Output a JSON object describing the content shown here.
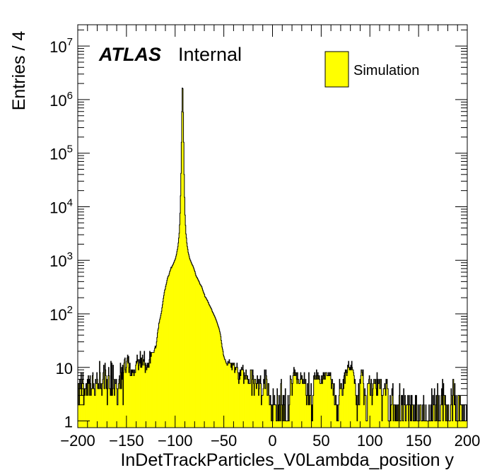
{
  "chart_data": {
    "type": "bar",
    "subtype": "histogram",
    "xlabel": "InDetTrackParticles_V0Lambda_position y",
    "ylabel": "Entries / 4",
    "xlim": [
      -200,
      200
    ],
    "ylim": [
      0.75,
      25000000
    ],
    "yscale": "log",
    "bin_width": 4,
    "x_ticks": [
      "−200",
      "−150",
      "−100",
      "−50",
      "0",
      "50",
      "100",
      "150",
      "200"
    ],
    "x_tick_values": [
      -200,
      -150,
      -100,
      -50,
      0,
      50,
      100,
      150,
      200
    ],
    "y_ticks": [
      {
        "base": "1",
        "exp": "",
        "value": 1
      },
      {
        "base": "10",
        "exp": "",
        "value": 10
      },
      {
        "base": "10",
        "exp": "2",
        "value": 100
      },
      {
        "base": "10",
        "exp": "3",
        "value": 1000
      },
      {
        "base": "10",
        "exp": "4",
        "value": 10000
      },
      {
        "base": "10",
        "exp": "5",
        "value": 100000
      },
      {
        "base": "10",
        "exp": "6",
        "value": 1000000
      },
      {
        "base": "10",
        "exp": "7",
        "value": 10000000
      }
    ],
    "label_atlas": "ATLAS",
    "label_internal": "Internal",
    "legend": {
      "position": "top-right",
      "entries": [
        "Simulation"
      ]
    },
    "fill_color": "#ffff00",
    "line_color": "#000000",
    "series": [
      {
        "name": "Simulation",
        "values": [
          2,
          5,
          5,
          2,
          6,
          4,
          4,
          8,
          3,
          5,
          6,
          8,
          5,
          2,
          4,
          3,
          4,
          4,
          5,
          3,
          5,
          6,
          3,
          7,
          5,
          6,
          3,
          7,
          5,
          3,
          4,
          4,
          7,
          8,
          4,
          5,
          4,
          3,
          3,
          6,
          5,
          5,
          8,
          6,
          4,
          5,
          4,
          4,
          13,
          8,
          4,
          5,
          4,
          3,
          5,
          6,
          8,
          11,
          4,
          4,
          12,
          9,
          7,
          4,
          6,
          2,
          4,
          7,
          10,
          7,
          4,
          4,
          3,
          13,
          3,
          12,
          3,
          4,
          11,
          6,
          4,
          3,
          6,
          5,
          5,
          6,
          4,
          2,
          2,
          4,
          5,
          6,
          7,
          4,
          12,
          8,
          4,
          10,
          6,
          11,
          2,
          8,
          12,
          14,
          15,
          9,
          8,
          10,
          13,
          15,
          17,
          12,
          16,
          8,
          10,
          12,
          7,
          7,
          9,
          7,
          9,
          8,
          9,
          8,
          7,
          9,
          8,
          8,
          11,
          13,
          12,
          17,
          13,
          14,
          9,
          11,
          14,
          12,
          20,
          10,
          15,
          10,
          15,
          17,
          11,
          14,
          13,
          20,
          11,
          8,
          12,
          11,
          9,
          10,
          12,
          10,
          12,
          10,
          14,
          20,
          12,
          19,
          16,
          19,
          19,
          19,
          19,
          19,
          19,
          21,
          23,
          25,
          23,
          25,
          30,
          36,
          44,
          50,
          54,
          66,
          70,
          78,
          84,
          92,
          101,
          112,
          130,
          148,
          170,
          195,
          220,
          250,
          278,
          290,
          322,
          350,
          380,
          420,
          460,
          490,
          510,
          520,
          560,
          610,
          640,
          680,
          740,
          720,
          760,
          800,
          820,
          860,
          900,
          940,
          990,
          1040,
          1100,
          1200,
          1300,
          1450,
          1600,
          1800,
          2100,
          2600,
          3200,
          4600,
          7600,
          16000,
          42000,
          160000,
          600000,
          1650000,
          1600000,
          580000,
          160000,
          40000,
          15000,
          7000,
          4500,
          3100,
          2600,
          2100,
          1800,
          1600,
          1400,
          1300,
          1200,
          1100,
          1040,
          990,
          940,
          900,
          860,
          820,
          800,
          760,
          720,
          680,
          640,
          610,
          560,
          520,
          500,
          480,
          470,
          450,
          430,
          415,
          400,
          380,
          360,
          350,
          340,
          330,
          320,
          300,
          280,
          265,
          250,
          240,
          230,
          210,
          205,
          200,
          195,
          185,
          180,
          175,
          165,
          160,
          150,
          145,
          140,
          135,
          130,
          125,
          120,
          112,
          108,
          104,
          100,
          95,
          92,
          88,
          84,
          80,
          76,
          72,
          68,
          64,
          60,
          57,
          54,
          50,
          46,
          42,
          38,
          32,
          28,
          24,
          22,
          20,
          17,
          16,
          15,
          14,
          14,
          13,
          12,
          12,
          11,
          11,
          13,
          12,
          12,
          14,
          12,
          12,
          12,
          10,
          12,
          9,
          12,
          12,
          11,
          12,
          12,
          8,
          10,
          9,
          10,
          10,
          12,
          10,
          8,
          6,
          5,
          8,
          6,
          9,
          7,
          9,
          10,
          9,
          9,
          11,
          9,
          5,
          8,
          7,
          6,
          7,
          9,
          7,
          6,
          7,
          6,
          5,
          6,
          5,
          5,
          5,
          9,
          9,
          9,
          3,
          6,
          9,
          7,
          5,
          3,
          6,
          6,
          6,
          5,
          4,
          5,
          7,
          5,
          6,
          3,
          4,
          6,
          5,
          7,
          5,
          2,
          3,
          3,
          3,
          4,
          6,
          5,
          9,
          4,
          4,
          9,
          7,
          6,
          3,
          3,
          5,
          5,
          3,
          2,
          2,
          3,
          2,
          1,
          2,
          2,
          1,
          4,
          2,
          2,
          3,
          2,
          2,
          2,
          1,
          1,
          4,
          3,
          1,
          2,
          1,
          3,
          2,
          1,
          5,
          6,
          2,
          1,
          2,
          3,
          1,
          3,
          2,
          1,
          4,
          1,
          1,
          1,
          1,
          1,
          3,
          1,
          1,
          2,
          3,
          7,
          6,
          6,
          5,
          3,
          5,
          7,
          8,
          10,
          7,
          9,
          8,
          7,
          8,
          6,
          5,
          8,
          6,
          6,
          5,
          5,
          5,
          6,
          8,
          6,
          7,
          7,
          5,
          6,
          5,
          5,
          8,
          5,
          5,
          6,
          3,
          2,
          3,
          5,
          3,
          2,
          8,
          3,
          2,
          3,
          3,
          5,
          1,
          2,
          1,
          3,
          3,
          7,
          6,
          8,
          7,
          6,
          6,
          9,
          7,
          6,
          8,
          7,
          6,
          7,
          6,
          5,
          5,
          5,
          7,
          6,
          5,
          7,
          8,
          6,
          8,
          7,
          6,
          8,
          8,
          8,
          7,
          7,
          7,
          8,
          7,
          7,
          8,
          7,
          8,
          6,
          4,
          5,
          6,
          5,
          3,
          4,
          5,
          2,
          2,
          3,
          3,
          2,
          1,
          2,
          1,
          1,
          2,
          3,
          6,
          4,
          4,
          5,
          5,
          4,
          3,
          3,
          6,
          4,
          7,
          8,
          5,
          9,
          8,
          9,
          7,
          8,
          11,
          10,
          13,
          10,
          9,
          10,
          9,
          11,
          9,
          13,
          10,
          9,
          9,
          8,
          7,
          5,
          6,
          5,
          3,
          2,
          3,
          1,
          2,
          3,
          5,
          2,
          2,
          6,
          5,
          7,
          9,
          9,
          8,
          7,
          9,
          5,
          2,
          3,
          4,
          3,
          3,
          1,
          1,
          1,
          5,
          5,
          5,
          6,
          7,
          5,
          3,
          3,
          6,
          5,
          2,
          3,
          4,
          5,
          6,
          6,
          5,
          5,
          6,
          4,
          3,
          8,
          3,
          6,
          5,
          5,
          6,
          4,
          4,
          6,
          6,
          3,
          1,
          3,
          3,
          4,
          4,
          4,
          5,
          4,
          3,
          6,
          5,
          6,
          4,
          4,
          1,
          1,
          1,
          1,
          3,
          1,
          2,
          2,
          4,
          3,
          5,
          1,
          2,
          2,
          2,
          1,
          2,
          1,
          2,
          1,
          1,
          2,
          2,
          1,
          3,
          5,
          1,
          1,
          1,
          3,
          2,
          3,
          1,
          1,
          4,
          2,
          2,
          3,
          1,
          1,
          2,
          2,
          2,
          3,
          2,
          1,
          3,
          2,
          2,
          1,
          3,
          1,
          3,
          2,
          2,
          1,
          1,
          2,
          1,
          1,
          3,
          1,
          3,
          2,
          1,
          1,
          1,
          2,
          1,
          1,
          2,
          2,
          2,
          1,
          1,
          1,
          2,
          1,
          3,
          2,
          1,
          1,
          1,
          2,
          1,
          1,
          1,
          1,
          1,
          1,
          2,
          1,
          1,
          1,
          2,
          1,
          4,
          1,
          1,
          3,
          2,
          2,
          4,
          1,
          1,
          2,
          3,
          1,
          3,
          5,
          1,
          1,
          3,
          1,
          1,
          1,
          2,
          3,
          4,
          2,
          6,
          1,
          5,
          3,
          3,
          2,
          3,
          1,
          2,
          2,
          1,
          1,
          2,
          2,
          1,
          1,
          1,
          1,
          2,
          4,
          3,
          2,
          1,
          6,
          6,
          3,
          2,
          5,
          2,
          1,
          3,
          1,
          1,
          1,
          3,
          3,
          3,
          1,
          3,
          3,
          2,
          2,
          2,
          1,
          1,
          2,
          1,
          1,
          2,
          1,
          1,
          1,
          1,
          2,
          1
        ]
      }
    ]
  }
}
